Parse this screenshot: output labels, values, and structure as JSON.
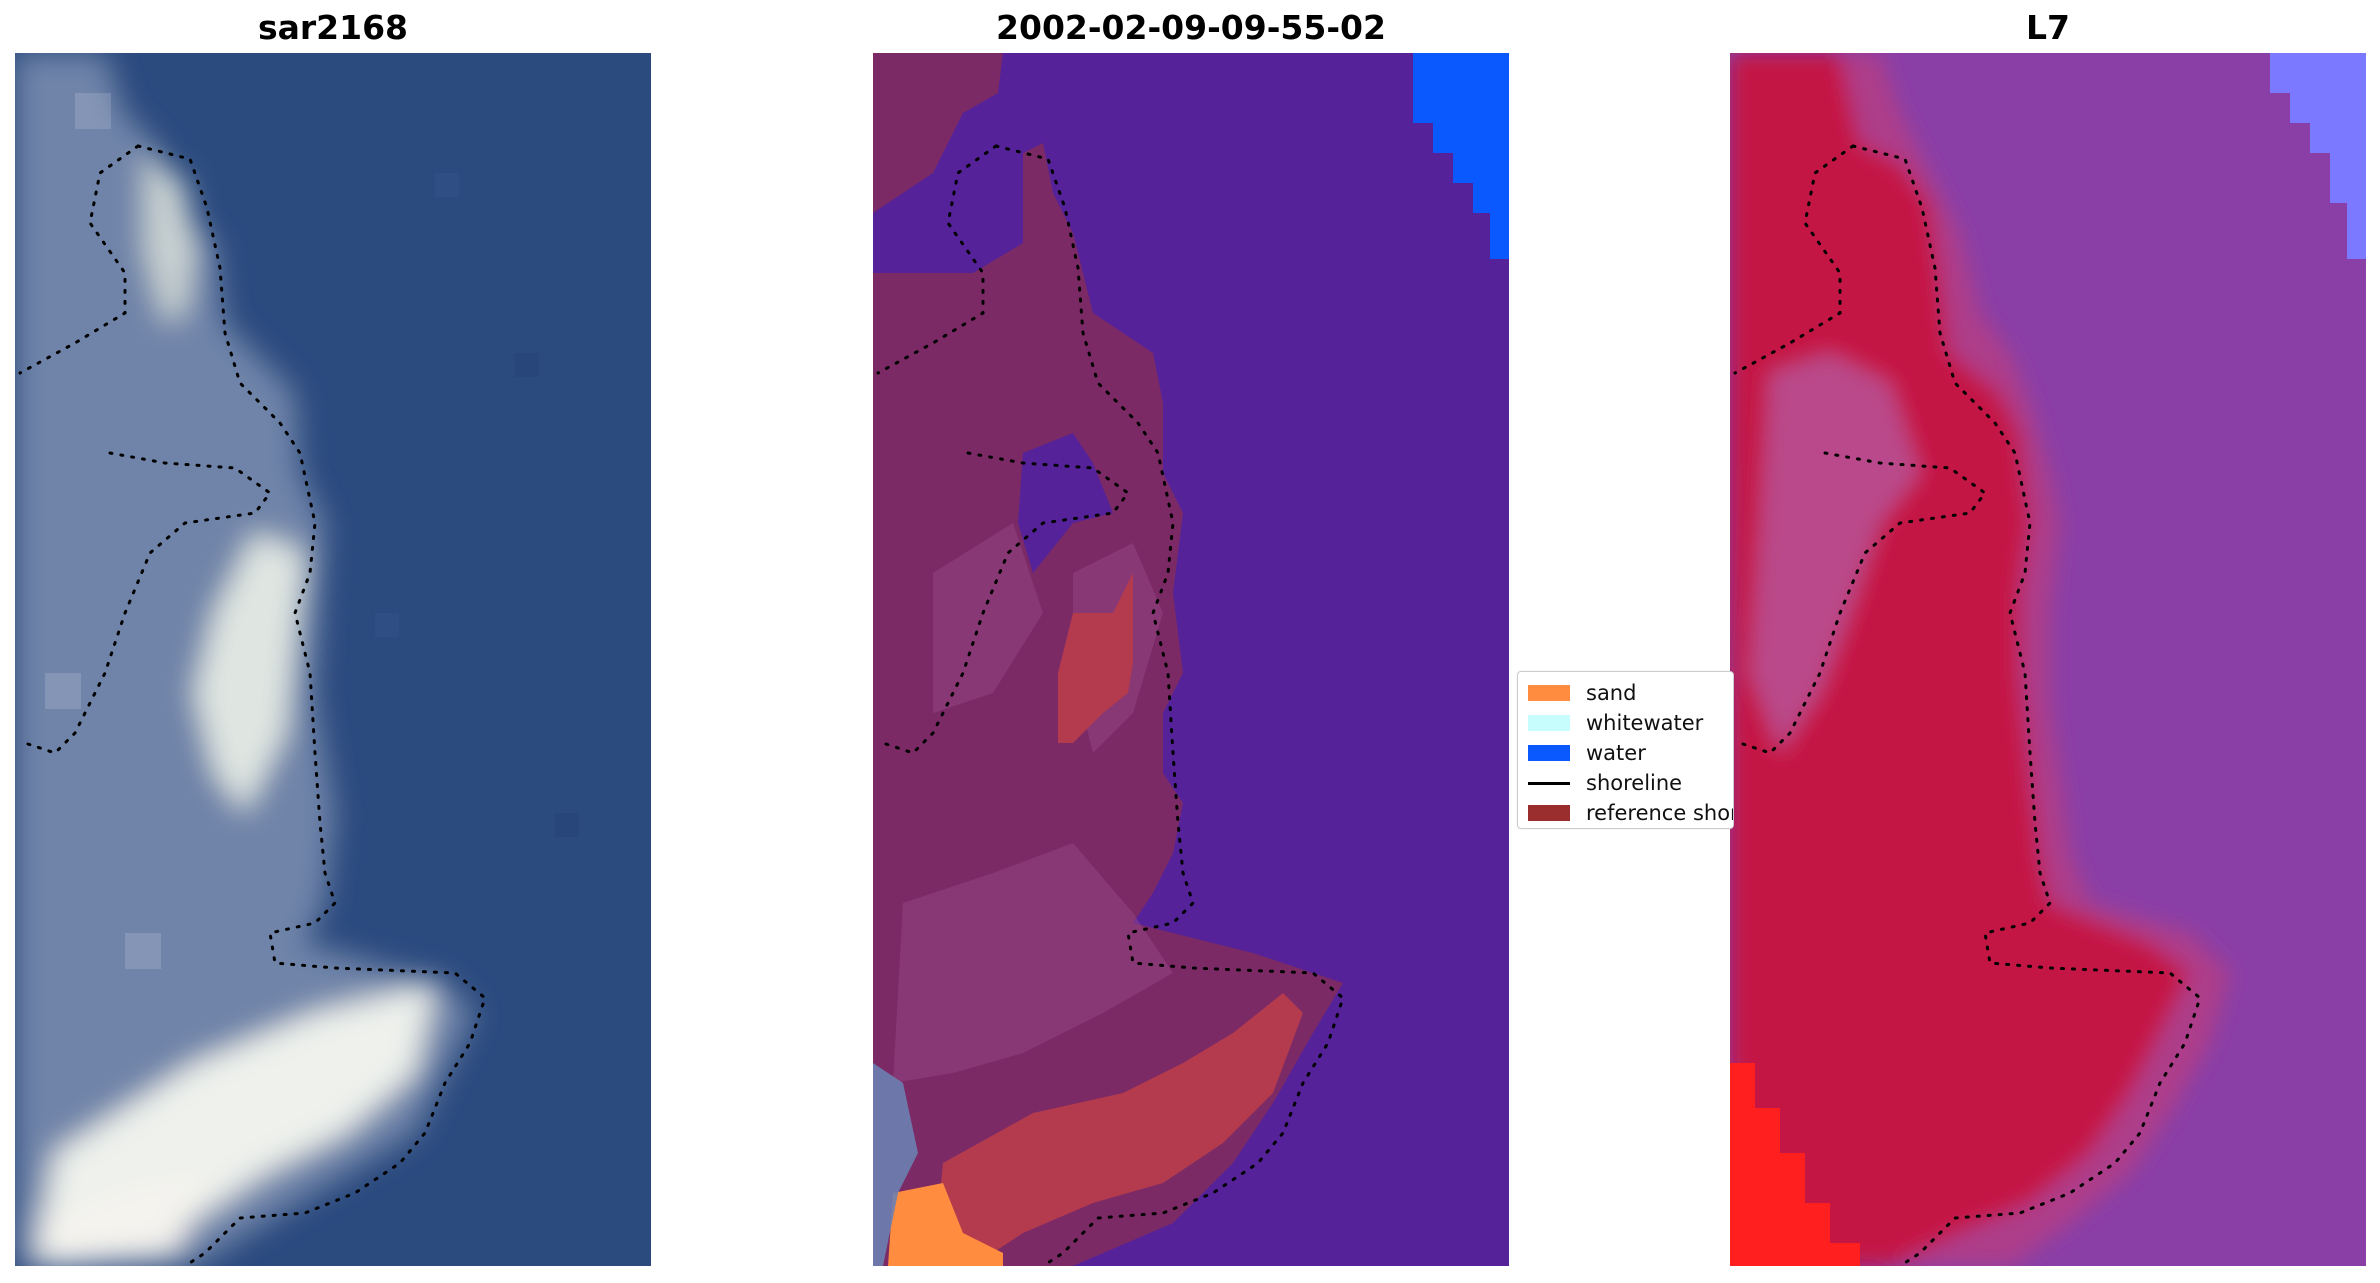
{
  "panels": [
    {
      "title": "sar2168"
    },
    {
      "title": "2002-02-09-09-55-02"
    },
    {
      "title": "L7"
    }
  ],
  "legend": {
    "items": [
      {
        "label": "sand",
        "color": "#ff8c3f"
      },
      {
        "label": "whitewater",
        "color": "#c7fdfd"
      },
      {
        "label": "water",
        "color": "#0a59ff"
      },
      {
        "label": "shoreline",
        "color": "#000000"
      },
      {
        "label": "reference shoreline",
        "color": "#9a2e2e"
      }
    ]
  },
  "colors": {
    "rgb_water": "#2b4a7e",
    "rgb_land": "#7f93b4",
    "rgb_foam": "#e6ebe9",
    "class_water": "#55229a",
    "class_land": "#7b2a66",
    "class_sand_overlay": "#b43a4e",
    "nir_water": "#8a3fa6",
    "nir_land": "#c41944",
    "nir_bright": "#ff1f1f",
    "nir_sky": "#7b79ff"
  }
}
